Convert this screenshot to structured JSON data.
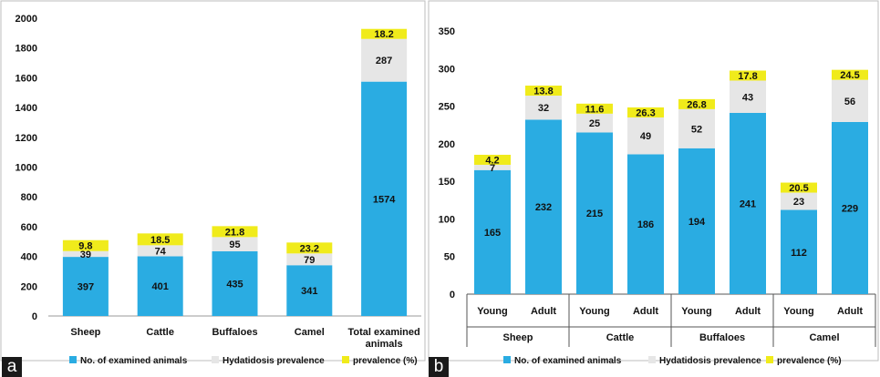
{
  "panel_labels": [
    "a",
    "b"
  ],
  "colors": {
    "examined": "#2AACE2",
    "hydatidosis": "#E6E6E6",
    "prevalence": "#F0EB1B"
  },
  "legend": {
    "examined": "No. of examined animals",
    "hydatidosis": "Hydatidosis prevalence",
    "prevalence": "prevalence (%)"
  },
  "chart_data": [
    {
      "type": "bar",
      "stacked": true,
      "categories": [
        "Sheep",
        "Cattle",
        "Buffaloes",
        "Camel",
        "Total examined animals"
      ],
      "series": [
        {
          "name": "No. of examined animals",
          "values": [
            397,
            401,
            435,
            341,
            1574
          ]
        },
        {
          "name": "Hydatidosis prevalence",
          "values": [
            39,
            74,
            95,
            79,
            287
          ]
        },
        {
          "name": "prevalence (%)",
          "values": [
            9.8,
            18.5,
            21.8,
            23.2,
            18.2
          ]
        }
      ],
      "ylim": [
        0,
        2000
      ],
      "yticks": [
        0,
        200,
        400,
        600,
        800,
        1000,
        1200,
        1400,
        1600,
        1800,
        2000
      ],
      "legend_position": "bottom"
    },
    {
      "type": "bar",
      "stacked": true,
      "groups": [
        "Sheep",
        "Cattle",
        "Buffaloes",
        "Camel"
      ],
      "subcategories": [
        "Young",
        "Adult"
      ],
      "series": [
        {
          "name": "No. of examined animals",
          "values": [
            165,
            232,
            215,
            186,
            194,
            241,
            112,
            229
          ]
        },
        {
          "name": "Hydatidosis prevalence",
          "values": [
            7,
            32,
            25,
            49,
            52,
            43,
            23,
            56
          ]
        },
        {
          "name": "prevalence (%)",
          "values": [
            4.2,
            13.8,
            11.6,
            26.3,
            26.8,
            17.8,
            20.5,
            24.5
          ]
        }
      ],
      "ylim": [
        0,
        350
      ],
      "yticks": [
        0,
        50,
        100,
        150,
        200,
        250,
        300,
        350
      ],
      "legend_position": "bottom"
    }
  ]
}
